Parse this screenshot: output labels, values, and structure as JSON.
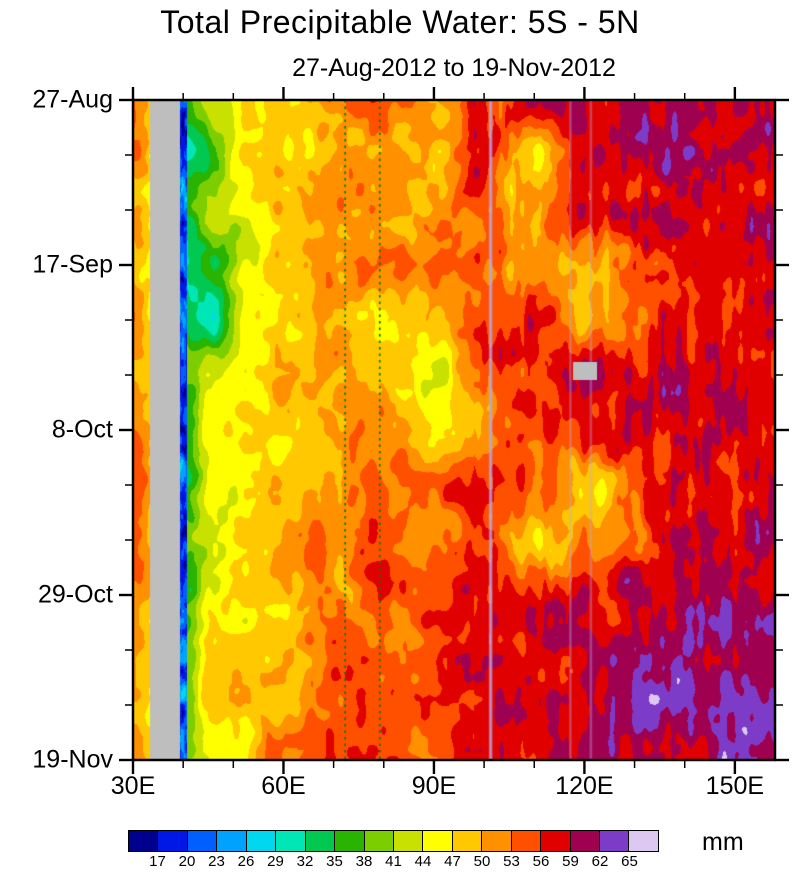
{
  "title": "Total Precipitable Water: 5S - 5N",
  "subtitle": "27-Aug-2012 to 19-Nov-2012",
  "unit": "mm",
  "chart_data": {
    "type": "heatmap",
    "title": "Total Precipitable Water: 5S - 5N",
    "subtitle": "27-Aug-2012 to 19-Nov-2012",
    "units": "mm",
    "x_axis": {
      "kind": "longitude",
      "range_lon": [
        30,
        158
      ],
      "minor_step_deg": 10,
      "label_ticks": [
        {
          "lon": 30,
          "label": "30E"
        },
        {
          "lon": 60,
          "label": "60E"
        },
        {
          "lon": 90,
          "label": "90E"
        },
        {
          "lon": 120,
          "label": "120E"
        },
        {
          "lon": 150,
          "label": "150E"
        }
      ]
    },
    "y_axis": {
      "kind": "time",
      "range_days": [
        0,
        84
      ],
      "minor_step_days": 7,
      "label_ticks": [
        {
          "day": 0,
          "label": "27-Aug"
        },
        {
          "day": 21,
          "label": "17-Sep"
        },
        {
          "day": 42,
          "label": "8-Oct"
        },
        {
          "day": 63,
          "label": "29-Oct"
        },
        {
          "day": 84,
          "label": "19-Nov"
        }
      ]
    },
    "colorbar": {
      "boundaries": [
        17,
        20,
        23,
        26,
        29,
        32,
        35,
        38,
        41,
        44,
        47,
        50,
        53,
        56,
        59,
        62,
        65
      ],
      "colors": [
        "#00008F",
        "#0018E6",
        "#0060FF",
        "#00A2FF",
        "#00D8F0",
        "#00E6B4",
        "#00C850",
        "#28B400",
        "#7DCE00",
        "#C8E100",
        "#FFFF00",
        "#FFC800",
        "#FF9000",
        "#FF5000",
        "#E10000",
        "#A00050",
        "#7D3CC8",
        "#DCC8F0"
      ],
      "missing_color": "#BEBEBE",
      "unit": "mm"
    },
    "grid": {
      "comment_units": "total precipitable water, mm (values estimated from plot colors)",
      "lons": [
        30,
        41,
        46,
        52,
        60,
        70,
        80,
        90,
        100,
        110,
        120,
        140,
        160
      ],
      "days": [
        0,
        7,
        14,
        21,
        28,
        35,
        42,
        49,
        56,
        63,
        70,
        77,
        84
      ],
      "values_mm": [
        [
          51,
          37,
          45,
          46,
          49,
          52,
          54,
          52,
          55,
          57,
          58,
          59,
          58
        ],
        [
          52,
          33,
          36,
          45,
          48,
          51,
          53,
          50,
          56,
          48,
          57,
          61,
          59
        ],
        [
          50,
          37,
          44,
          46,
          50,
          53,
          52,
          51,
          55,
          49,
          56,
          59,
          60
        ],
        [
          51,
          34,
          36,
          44,
          48,
          52,
          54,
          53,
          56,
          50,
          48,
          58,
          59
        ],
        [
          52,
          33,
          30,
          42,
          48,
          51,
          47,
          46,
          55,
          57,
          49,
          57,
          58
        ],
        [
          51,
          38,
          43,
          45,
          48,
          50,
          48,
          45,
          53,
          56,
          58,
          59,
          57
        ],
        [
          52,
          37,
          44,
          46,
          49,
          52,
          50,
          47,
          51,
          55,
          57,
          58,
          59
        ],
        [
          53,
          36,
          43,
          45,
          48,
          51,
          53,
          52,
          55,
          56,
          49,
          57,
          60
        ],
        [
          52,
          38,
          44,
          46,
          50,
          53,
          54,
          53,
          56,
          48,
          50,
          58,
          59
        ],
        [
          51,
          37,
          45,
          47,
          49,
          52,
          55,
          54,
          56,
          57,
          58,
          59,
          60
        ],
        [
          52,
          39,
          46,
          48,
          50,
          53,
          54,
          55,
          56,
          57,
          59,
          60,
          61
        ],
        [
          51,
          40,
          47,
          49,
          51,
          54,
          55,
          56,
          57,
          58,
          60,
          62,
          61
        ],
        [
          52,
          41,
          47,
          48,
          52,
          55,
          56,
          55,
          57,
          58,
          59,
          61,
          62
        ]
      ]
    },
    "features": {
      "missing_data_band_lon": [
        33.3,
        39.3
      ],
      "low_value_stripe_lon": [
        39.3,
        40.7
      ],
      "missing_data_patch": {
        "lon": [
          117.8,
          122.6
        ],
        "days": [
          33.4,
          35.6
        ]
      },
      "reference_dotted_lines_lon": [
        72.3,
        79.2
      ],
      "overlay_light_lines_lon": [
        101.3,
        117.2,
        121.3
      ]
    }
  }
}
